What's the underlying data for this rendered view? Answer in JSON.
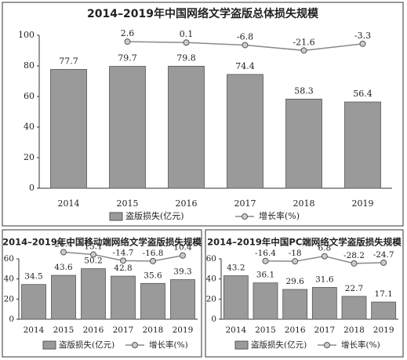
{
  "chart_data": [
    {
      "type": "bar",
      "title": "2014–2019年中国网络文学盗版总体损失规模",
      "categories": [
        "2014",
        "2015",
        "2016",
        "2017",
        "2018",
        "2019"
      ],
      "series": [
        {
          "name": "盗版损失(亿元)",
          "color": "#9a9a9a",
          "values": [
            77.7,
            79.7,
            79.8,
            74.4,
            58.3,
            56.4
          ]
        },
        {
          "name": "增长率(%)",
          "color": "#8a8a8a",
          "axis": "y2",
          "values": [
            null,
            2.6,
            0.1,
            -6.8,
            -21.6,
            -3.3
          ]
        }
      ],
      "ylim": [
        0,
        100
      ],
      "yticks": [
        0,
        20,
        40,
        60,
        80,
        100
      ],
      "y2lim": [
        -400,
        20
      ],
      "legend": "bottom"
    },
    {
      "type": "bar",
      "title": "2014–2019年中国移动端网络文学盗版损失规模",
      "categories": [
        "2014",
        "2015",
        "2016",
        "2017",
        "2018",
        "2019"
      ],
      "series": [
        {
          "name": "盗版损失(亿元)",
          "color": "#9a9a9a",
          "values": [
            34.5,
            43.6,
            50.2,
            42.8,
            35.6,
            39.3
          ]
        },
        {
          "name": "增长率(%)",
          "color": "#8a8a8a",
          "axis": "y2",
          "values": [
            null,
            26.4,
            15.1,
            -14.7,
            -16.8,
            10.4
          ]
        }
      ],
      "ylim": [
        0,
        60
      ],
      "yticks": [
        0,
        20,
        40,
        60
      ],
      "y2lim": [
        -300,
        40
      ],
      "legend": "bottom"
    },
    {
      "type": "bar",
      "title": "2014–2019年中国PC端网络文学盗版损失规模",
      "categories": [
        "2014",
        "2015",
        "2016",
        "2017",
        "2018",
        "2019"
      ],
      "series": [
        {
          "name": "盗版损失(亿元)",
          "color": "#9a9a9a",
          "values": [
            43.2,
            36.1,
            29.6,
            31.6,
            22.7,
            17.1
          ]
        },
        {
          "name": "增长率(%)",
          "color": "#8a8a8a",
          "axis": "y2",
          "values": [
            null,
            -16.4,
            -18.0,
            6.8,
            -28.2,
            -24.7
          ]
        }
      ],
      "ylim": [
        0,
        60
      ],
      "yticks": [
        0,
        20,
        40,
        60
      ],
      "y2lim": [
        -300,
        40
      ],
      "legend": "bottom"
    }
  ]
}
